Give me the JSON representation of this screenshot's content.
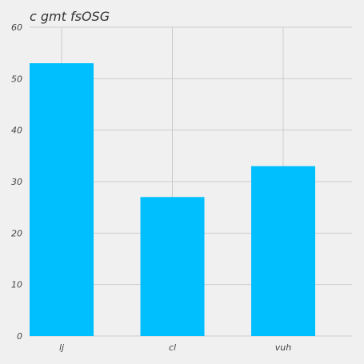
{
  "chart_data": {
    "type": "bar",
    "title": "c gmt fsOSG",
    "xlabel": "",
    "ylabel": "",
    "categories": [
      "lj",
      "cl",
      "vuh"
    ],
    "values": [
      53,
      27,
      33
    ],
    "ylim": [
      0,
      60
    ],
    "yticks": [
      0,
      10,
      20,
      30,
      40,
      50,
      60
    ],
    "grid": true,
    "legend": "none",
    "bar_color": "#00bfff",
    "background_color": "#f0f0f0",
    "grid_color": "#cbcbcb"
  }
}
